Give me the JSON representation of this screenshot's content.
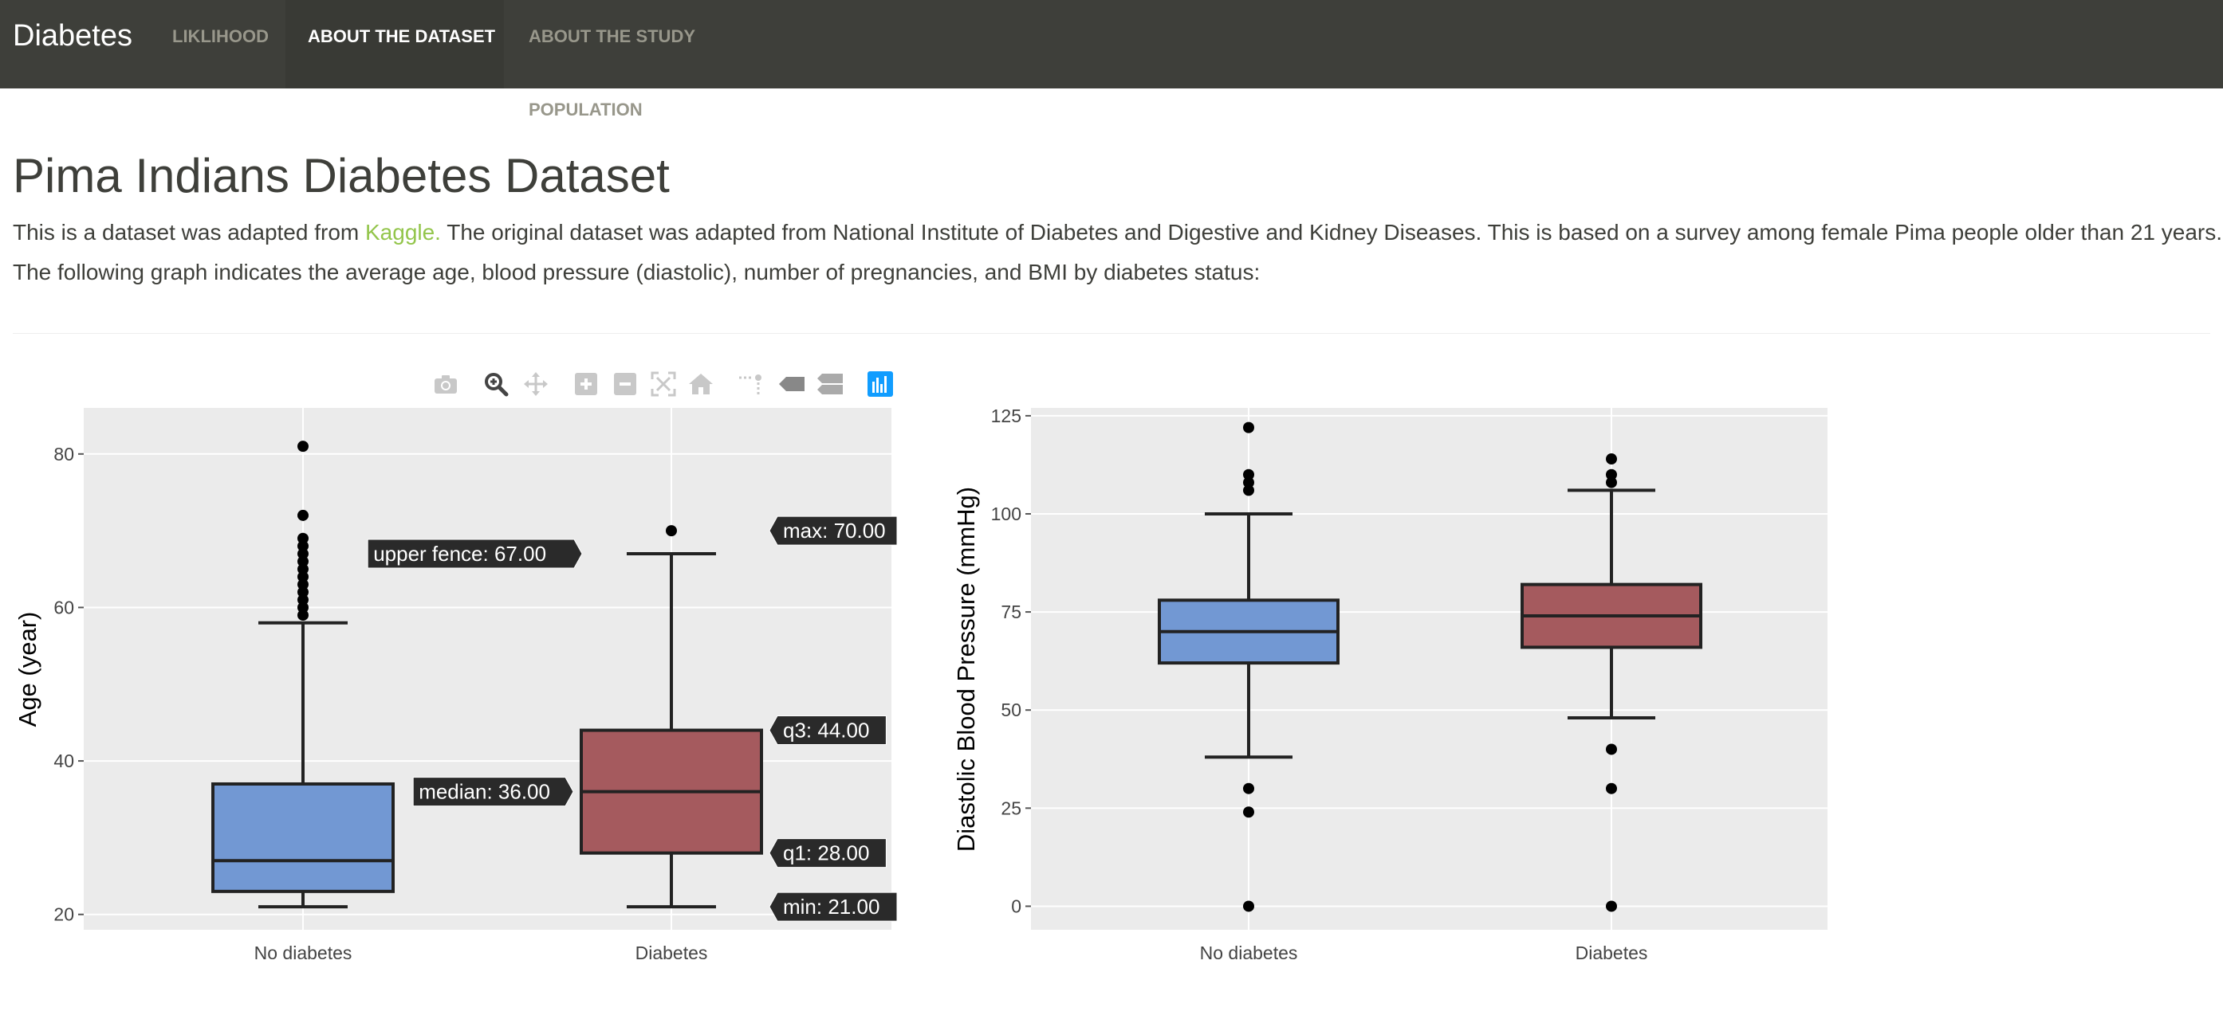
{
  "navbar": {
    "brand": "Diabetes",
    "items": [
      {
        "label": "LIKLIHOOD",
        "active": false
      },
      {
        "label": "ABOUT THE DATASET",
        "active": true
      },
      {
        "label": "ABOUT THE STUDY POPULATION",
        "active": false
      }
    ]
  },
  "page": {
    "title": "Pima Indians Diabetes Dataset",
    "intro_before_link": "This is a dataset was adapted from ",
    "intro_link": "Kaggle.",
    "intro_after_link": " The original dataset was adapted from National Institute of Diabetes and Digestive and Kidney Diseases. This is based on a survey among female Pima people older than 21 years.",
    "intro_line2": "The following graph indicates the average age, blood pressure (diastolic), number of pregnancies, and BMI by diabetes status:"
  },
  "toolbar": {
    "icons": [
      "camera-icon",
      "zoom-icon",
      "pan-icon",
      "zoom-in-icon",
      "zoom-out-icon",
      "autoscale-icon",
      "reset-axes-icon",
      "spike-lines-icon",
      "hover-closest-icon",
      "hover-compare-icon",
      "plotly-logo-icon"
    ]
  },
  "colors": {
    "no_diabetes": "#7298d3",
    "diabetes": "#a55a5e",
    "plot_bg": "#ebebeb",
    "accent_link": "#93c54b",
    "navbar_bg": "#3e3f3a"
  },
  "chart_data": [
    {
      "type": "box",
      "ylabel": "Age (year)",
      "ylim": [
        18,
        86
      ],
      "yticks": [
        20,
        40,
        60,
        80
      ],
      "categories": [
        "No diabetes",
        "Diabetes"
      ],
      "series": [
        {
          "category": "No diabetes",
          "min": 21,
          "q1": 23,
          "median": 27,
          "q3": 37,
          "upper_fence": 58,
          "outliers": [
            59,
            60,
            61,
            62,
            63,
            64,
            65,
            66,
            67,
            68,
            69,
            72,
            81
          ]
        },
        {
          "category": "Diabetes",
          "min": 21,
          "q1": 28,
          "median": 36,
          "q3": 44,
          "upper_fence": 67,
          "max": 70,
          "outliers": [
            70
          ]
        }
      ],
      "hover_labels": [
        {
          "text": "upper fence: 67.00",
          "value": 67
        },
        {
          "text": "max: 70.00",
          "value": 70
        },
        {
          "text": "q3: 44.00",
          "value": 44
        },
        {
          "text": "median: 36.00",
          "value": 36
        },
        {
          "text": "q1: 28.00",
          "value": 28
        },
        {
          "text": "min: 21.00",
          "value": 21
        }
      ]
    },
    {
      "type": "box",
      "ylabel": "Diastolic Blood Pressure (mmHg)",
      "ylim": [
        -6,
        127
      ],
      "yticks": [
        0,
        25,
        50,
        75,
        100,
        125
      ],
      "categories": [
        "No diabetes",
        "Diabetes"
      ],
      "series": [
        {
          "category": "No diabetes",
          "lower_fence": 38,
          "q1": 62,
          "median": 70,
          "q3": 78,
          "upper_fence": 100,
          "outliers": [
            0,
            24,
            30,
            106,
            108,
            110,
            122
          ]
        },
        {
          "category": "Diabetes",
          "lower_fence": 48,
          "q1": 66,
          "median": 74,
          "q3": 82,
          "upper_fence": 106,
          "outliers": [
            0,
            30,
            40,
            108,
            110,
            114
          ]
        }
      ]
    }
  ]
}
